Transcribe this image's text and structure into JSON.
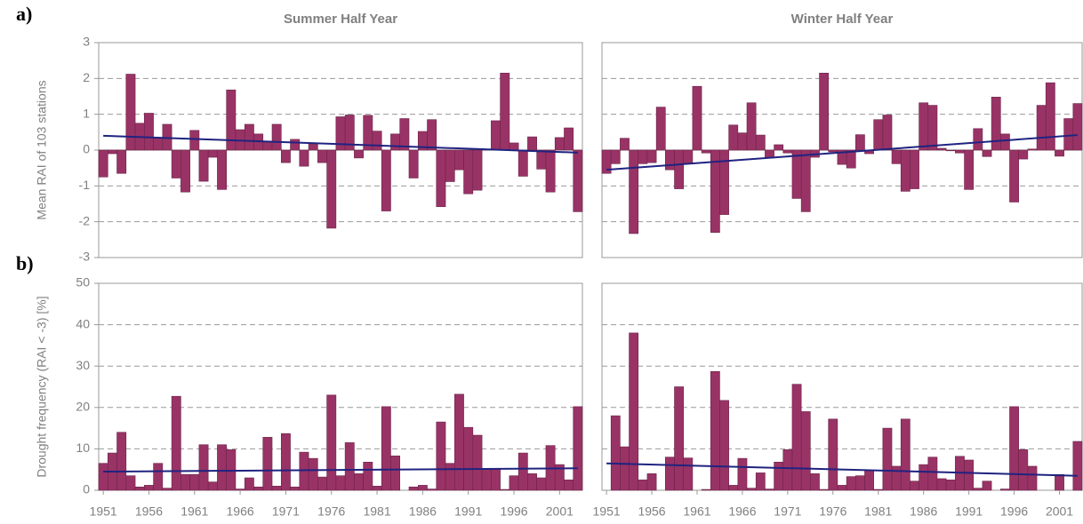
{
  "chart_data": [
    {
      "type": "bar",
      "panel_label": "a)",
      "title": "Summer Half Year",
      "y_label": "Mean RAI of 103 stations",
      "color": "#993366",
      "x": [
        1951,
        1952,
        1953,
        1954,
        1955,
        1956,
        1957,
        1958,
        1959,
        1960,
        1961,
        1962,
        1963,
        1964,
        1965,
        1966,
        1967,
        1968,
        1969,
        1970,
        1971,
        1972,
        1973,
        1974,
        1975,
        1976,
        1977,
        1978,
        1979,
        1980,
        1981,
        1982,
        1983,
        1984,
        1985,
        1986,
        1987,
        1988,
        1989,
        1990,
        1991,
        1992,
        1993,
        1994,
        1995,
        1996,
        1997,
        1998,
        1999,
        2000,
        2001,
        2002,
        2003
      ],
      "values": [
        -0.75,
        -0.1,
        -0.65,
        2.12,
        0.75,
        1.03,
        0.35,
        0.72,
        -0.78,
        -1.17,
        0.55,
        -0.87,
        -0.2,
        -1.1,
        1.68,
        0.57,
        0.72,
        0.45,
        0.25,
        0.72,
        -0.35,
        0.3,
        -0.45,
        0.2,
        -0.35,
        -2.18,
        0.93,
        0.98,
        -0.22,
        0.97,
        0.53,
        -1.7,
        0.45,
        0.88,
        -0.78,
        0.52,
        0.85,
        -1.58,
        -0.88,
        -0.55,
        -1.22,
        -1.12,
        0.02,
        0.82,
        2.15,
        0.2,
        -0.73,
        0.37,
        -0.53,
        -1.17,
        0.35,
        0.62,
        -1.72
      ],
      "trend": {
        "x": [
          1951,
          2003
        ],
        "values": [
          0.4,
          -0.07
        ],
        "color": "#1f2380"
      },
      "xlim": [
        1950.5,
        2003.5
      ],
      "ylim": [
        -3,
        3
      ],
      "yticks": [
        -3,
        -2,
        -1,
        0,
        1,
        2,
        3
      ],
      "grid": true
    },
    {
      "type": "bar",
      "title": "Winter Half Year",
      "color": "#993366",
      "x": [
        1951,
        1952,
        1953,
        1954,
        1955,
        1956,
        1957,
        1958,
        1959,
        1960,
        1961,
        1962,
        1963,
        1964,
        1965,
        1966,
        1967,
        1968,
        1969,
        1970,
        1971,
        1972,
        1973,
        1974,
        1975,
        1976,
        1977,
        1978,
        1979,
        1980,
        1981,
        1982,
        1983,
        1984,
        1985,
        1986,
        1987,
        1988,
        1989,
        1990,
        1991,
        1992,
        1993,
        1994,
        1995,
        1996,
        1997,
        1998,
        1999,
        2000,
        2001,
        2002,
        2003
      ],
      "values": [
        -0.65,
        -0.38,
        0.33,
        -2.33,
        -0.38,
        -0.35,
        1.2,
        -0.55,
        -1.08,
        -0.38,
        1.78,
        -0.08,
        -2.3,
        -1.8,
        0.7,
        0.48,
        1.32,
        0.42,
        -0.22,
        0.15,
        -0.08,
        -1.35,
        -1.72,
        -0.2,
        2.15,
        -0.05,
        -0.4,
        -0.5,
        0.43,
        -0.1,
        0.85,
        0.98,
        -0.38,
        -1.15,
        -1.08,
        1.32,
        1.25,
        0.05,
        -0.02,
        -0.08,
        -1.1,
        0.6,
        -0.18,
        1.48,
        0.45,
        -1.45,
        -0.25,
        0.03,
        1.25,
        1.88,
        -0.17,
        0.88,
        1.3
      ],
      "trend": {
        "x": [
          1951,
          2003
        ],
        "values": [
          -0.55,
          0.42
        ],
        "color": "#1f2380"
      },
      "xlim": [
        1950.5,
        2003.5
      ],
      "ylim": [
        -3,
        3
      ],
      "grid": true
    },
    {
      "type": "bar",
      "panel_label": "b)",
      "y_label": "Drought frequency (RAI < -3) [%]",
      "color": "#993366",
      "x": [
        1951,
        1952,
        1953,
        1954,
        1955,
        1956,
        1957,
        1958,
        1959,
        1960,
        1961,
        1962,
        1963,
        1964,
        1965,
        1966,
        1967,
        1968,
        1969,
        1970,
        1971,
        1972,
        1973,
        1974,
        1975,
        1976,
        1977,
        1978,
        1979,
        1980,
        1981,
        1982,
        1983,
        1984,
        1985,
        1986,
        1987,
        1988,
        1989,
        1990,
        1991,
        1992,
        1993,
        1994,
        1995,
        1996,
        1997,
        1998,
        1999,
        2000,
        2001,
        2002,
        2003
      ],
      "values": [
        6.5,
        9,
        14,
        3.5,
        0.8,
        1.2,
        6.5,
        0.5,
        22.7,
        3.8,
        3.8,
        11,
        2,
        11,
        9.8,
        0.3,
        3,
        0.8,
        12.8,
        1,
        13.7,
        0.8,
        9.2,
        7.7,
        3.2,
        23,
        3.5,
        11.5,
        4,
        6.8,
        1,
        20.2,
        8.3,
        0,
        0.8,
        1.2,
        0.3,
        16.5,
        6.5,
        23.2,
        15.2,
        13.3,
        5,
        5,
        0.2,
        3.5,
        9,
        4,
        3,
        10.8,
        6.2,
        2.5,
        20.2
      ],
      "trend": {
        "x": [
          1951,
          2003
        ],
        "values": [
          4.5,
          5.3
        ],
        "color": "#1f2380"
      },
      "xlim": [
        1950.5,
        2003.5
      ],
      "xticks": [
        1951,
        1956,
        1961,
        1966,
        1971,
        1976,
        1981,
        1986,
        1991,
        1996,
        2001
      ],
      "ylim": [
        0,
        50
      ],
      "yticks": [
        0,
        10,
        20,
        30,
        40,
        50
      ],
      "grid": true
    },
    {
      "type": "bar",
      "color": "#993366",
      "x": [
        1951,
        1952,
        1953,
        1954,
        1955,
        1956,
        1957,
        1958,
        1959,
        1960,
        1961,
        1962,
        1963,
        1964,
        1965,
        1966,
        1967,
        1968,
        1969,
        1970,
        1971,
        1972,
        1973,
        1974,
        1975,
        1976,
        1977,
        1978,
        1979,
        1980,
        1981,
        1982,
        1983,
        1984,
        1985,
        1986,
        1987,
        1988,
        1989,
        1990,
        1991,
        1992,
        1993,
        1994,
        1995,
        1996,
        1997,
        1998,
        1999,
        2000,
        2001,
        2002,
        2003
      ],
      "values": [
        0,
        18,
        10.5,
        38,
        2.5,
        4,
        0,
        8,
        25,
        7.8,
        0,
        0.2,
        28.7,
        21.7,
        1.2,
        7.7,
        0.5,
        4.2,
        0.3,
        6.8,
        9.8,
        25.6,
        19,
        4,
        0.2,
        17.2,
        1.2,
        3.3,
        3.5,
        4.8,
        0.2,
        15,
        5.8,
        17.2,
        2.2,
        6.2,
        8,
        2.8,
        2.5,
        8.2,
        7.3,
        0.5,
        2.2,
        0,
        0.3,
        20.2,
        9.8,
        5.8,
        0,
        0,
        3.8,
        0,
        11.8
      ],
      "trend": {
        "x": [
          1951,
          2003
        ],
        "values": [
          6.5,
          3.5
        ],
        "color": "#1f2380"
      },
      "xlim": [
        1950.5,
        2003.5
      ],
      "xticks": [
        1951,
        1956,
        1961,
        1966,
        1971,
        1976,
        1981,
        1986,
        1991,
        1996,
        2001
      ],
      "ylim": [
        0,
        50
      ],
      "grid": true
    }
  ]
}
